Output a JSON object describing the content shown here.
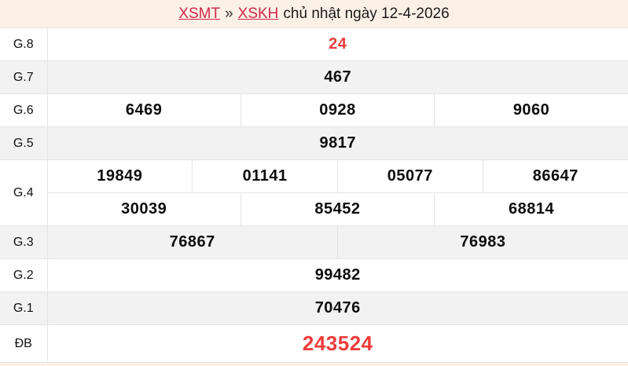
{
  "colors": {
    "header_bg": "#fdf1e7",
    "link_red": "#d02849",
    "number_red": "#f03c3c",
    "row_alt_bg": "#f2f2f2",
    "border": "#e4e4e4"
  },
  "header": {
    "region_link": "XSMT",
    "separator": "»",
    "station_link": "XSKH",
    "date_text": "chủ nhật ngày 12-4-2026"
  },
  "results": {
    "g8": {
      "label": "G.8",
      "values": [
        "24"
      ]
    },
    "g7": {
      "label": "G.7",
      "values": [
        "467"
      ]
    },
    "g6": {
      "label": "G.6",
      "values": [
        "6469",
        "0928",
        "9060"
      ]
    },
    "g5": {
      "label": "G.5",
      "values": [
        "9817"
      ]
    },
    "g4": {
      "label": "G.4",
      "row1": [
        "19849",
        "01141",
        "05077",
        "86647"
      ],
      "row2": [
        "30039",
        "85452",
        "68814"
      ]
    },
    "g3": {
      "label": "G.3",
      "values": [
        "76867",
        "76983"
      ]
    },
    "g2": {
      "label": "G.2",
      "values": [
        "99482"
      ]
    },
    "g1": {
      "label": "G.1",
      "values": [
        "70476"
      ]
    },
    "db": {
      "label": "ĐB",
      "values": [
        "243524"
      ]
    }
  }
}
